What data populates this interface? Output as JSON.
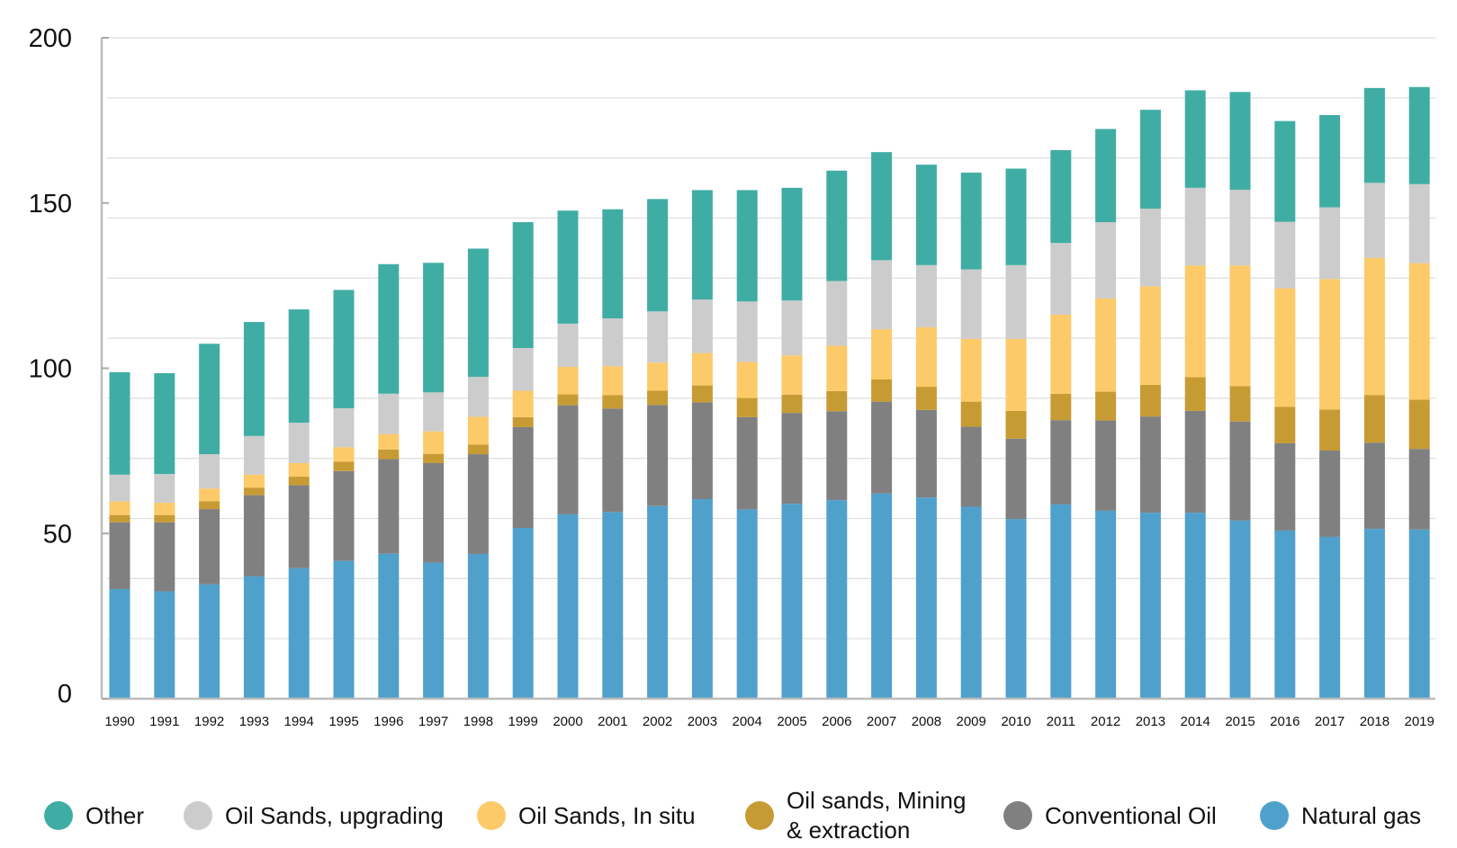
{
  "chart_data": {
    "type": "bar",
    "stacked": true,
    "title": "",
    "xlabel": "",
    "ylabel": "",
    "ylim": [
      0,
      200
    ],
    "yticks": [
      0,
      50,
      100,
      150,
      200
    ],
    "grid": true,
    "legend_position": "bottom",
    "categories": [
      "1990",
      "1991",
      "1992",
      "1993",
      "1994",
      "1995",
      "1996",
      "1997",
      "1998",
      "1999",
      "2000",
      "2001",
      "2002",
      "2003",
      "2004",
      "2005",
      "2006",
      "2007",
      "2008",
      "2009",
      "2010",
      "2011",
      "2012",
      "2013",
      "2014",
      "2015",
      "2016",
      "2017",
      "2018",
      "2019"
    ],
    "series": [
      {
        "name": "Natural gas",
        "color": "#4FA1CC",
        "values": [
          33.2,
          32.5,
          34.6,
          37.0,
          39.5,
          41.7,
          43.9,
          41.2,
          43.8,
          51.7,
          55.8,
          56.5,
          58.3,
          60.4,
          57.3,
          59.0,
          60.1,
          62.1,
          60.9,
          58.1,
          54.4,
          58.8,
          56.9,
          56.3,
          56.3,
          53.9,
          50.9,
          49.0,
          51.4,
          51.2
        ]
      },
      {
        "name": "Conventional Oil",
        "color": "#808080",
        "values": [
          20.2,
          20.9,
          22.8,
          24.6,
          25.1,
          27.2,
          28.6,
          30.1,
          30.2,
          30.5,
          33.0,
          31.3,
          30.6,
          29.3,
          27.9,
          27.5,
          26.9,
          27.8,
          26.5,
          24.2,
          24.3,
          25.5,
          27.3,
          29.1,
          30.8,
          30.0,
          26.4,
          26.1,
          26.1,
          24.4
        ]
      },
      {
        "name": "Oil sands, Mining & extraction",
        "color": "#C79B34",
        "values": [
          2.2,
          2.2,
          2.4,
          2.3,
          2.6,
          2.8,
          2.9,
          2.8,
          2.9,
          3.0,
          3.3,
          4.1,
          4.3,
          5.1,
          5.8,
          5.5,
          6.1,
          6.7,
          7.0,
          7.6,
          8.4,
          8.0,
          8.7,
          9.6,
          10.2,
          10.7,
          11.0,
          12.4,
          14.4,
          14.9
        ]
      },
      {
        "name": "Oil Sands, In situ",
        "color": "#FDCA69",
        "values": [
          4.1,
          3.7,
          3.8,
          3.9,
          4.1,
          4.4,
          4.7,
          6.8,
          8.4,
          8.0,
          8.3,
          8.7,
          8.5,
          9.8,
          10.9,
          11.9,
          13.7,
          15.2,
          18.0,
          19.0,
          21.8,
          23.9,
          28.2,
          29.8,
          33.8,
          36.5,
          35.9,
          39.5,
          41.5,
          41.3
        ]
      },
      {
        "name": "Oil Sands, upgrading",
        "color": "#CCCCCC",
        "values": [
          8.1,
          8.7,
          10.4,
          11.7,
          12.2,
          11.8,
          12.2,
          11.8,
          12.1,
          12.9,
          13.1,
          14.5,
          15.5,
          16.2,
          18.3,
          16.6,
          19.6,
          20.9,
          18.8,
          21.0,
          22.3,
          21.7,
          23.1,
          23.5,
          23.5,
          22.9,
          20.1,
          21.7,
          22.7,
          23.9
        ]
      },
      {
        "name": "Other",
        "color": "#40ADA5",
        "values": [
          31.0,
          30.5,
          33.4,
          34.5,
          34.3,
          35.8,
          39.2,
          39.2,
          38.8,
          38.1,
          34.2,
          33.0,
          34.0,
          33.1,
          33.7,
          34.1,
          33.4,
          32.7,
          30.4,
          29.3,
          29.2,
          28.1,
          28.2,
          29.9,
          29.5,
          29.6,
          30.5,
          27.9,
          28.7,
          29.4
        ]
      }
    ]
  },
  "legend": {
    "items": [
      {
        "label": "Other",
        "color": "#40ADA5"
      },
      {
        "label": "Oil Sands, upgrading",
        "color": "#CCCCCC"
      },
      {
        "label": "Oil Sands, In situ",
        "color": "#FDCA69"
      },
      {
        "label": "Oil sands, Mining\n& extraction",
        "color": "#C79B34"
      },
      {
        "label": "Conventional Oil",
        "color": "#808080"
      },
      {
        "label": "Natural gas",
        "color": "#4FA1CC"
      }
    ]
  }
}
